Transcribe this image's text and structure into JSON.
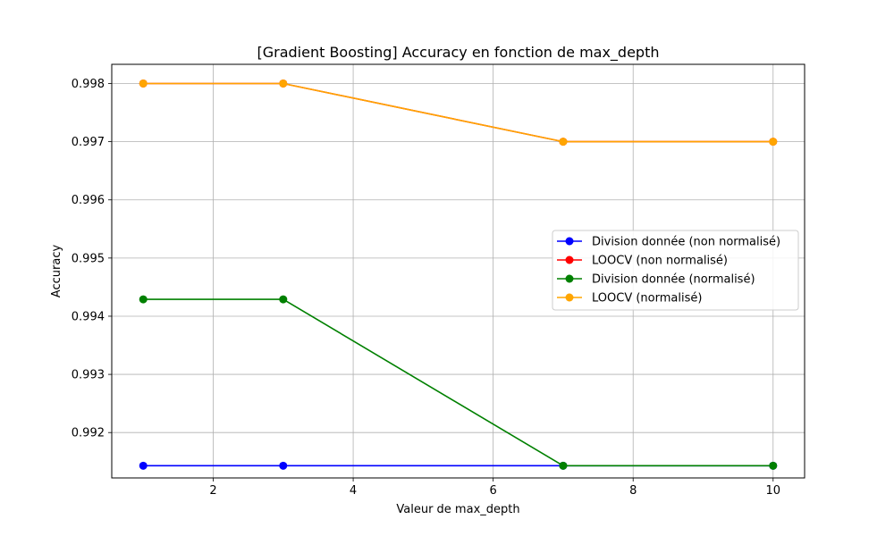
{
  "chart_data": {
    "type": "line",
    "title": "[Gradient Boosting] Accuracy en fonction de max_depth",
    "xlabel": "Valeur de max_depth",
    "ylabel": "Accuracy",
    "x": [
      1,
      3,
      7,
      10
    ],
    "xlim": [
      0.55,
      10.45
    ],
    "ylim": [
      0.99122,
      0.99833
    ],
    "xticks": [
      2,
      4,
      6,
      8,
      10
    ],
    "xtick_labels": [
      "2",
      "4",
      "6",
      "8",
      "10"
    ],
    "yticks": [
      0.992,
      0.993,
      0.994,
      0.995,
      0.996,
      0.997,
      0.998
    ],
    "ytick_labels": [
      "0.992",
      "0.993",
      "0.994",
      "0.995",
      "0.996",
      "0.997",
      "0.998"
    ],
    "grid": true,
    "legend_position": "center-right",
    "series": [
      {
        "name": "Division donnée (non normalisé)",
        "color": "#0000ff",
        "values": [
          0.99143,
          0.99143,
          0.99143,
          0.99143
        ]
      },
      {
        "name": "LOOCV (non normalisé)",
        "color": "#ff0000",
        "values": [
          0.998,
          0.998,
          0.997,
          0.997
        ]
      },
      {
        "name": "Division donnée (normalisé)",
        "color": "#008000",
        "values": [
          0.99429,
          0.99429,
          0.99143,
          0.99143
        ]
      },
      {
        "name": "LOOCV (normalisé)",
        "color": "#ffa500",
        "values": [
          0.998,
          0.998,
          0.997,
          0.997
        ]
      }
    ]
  }
}
